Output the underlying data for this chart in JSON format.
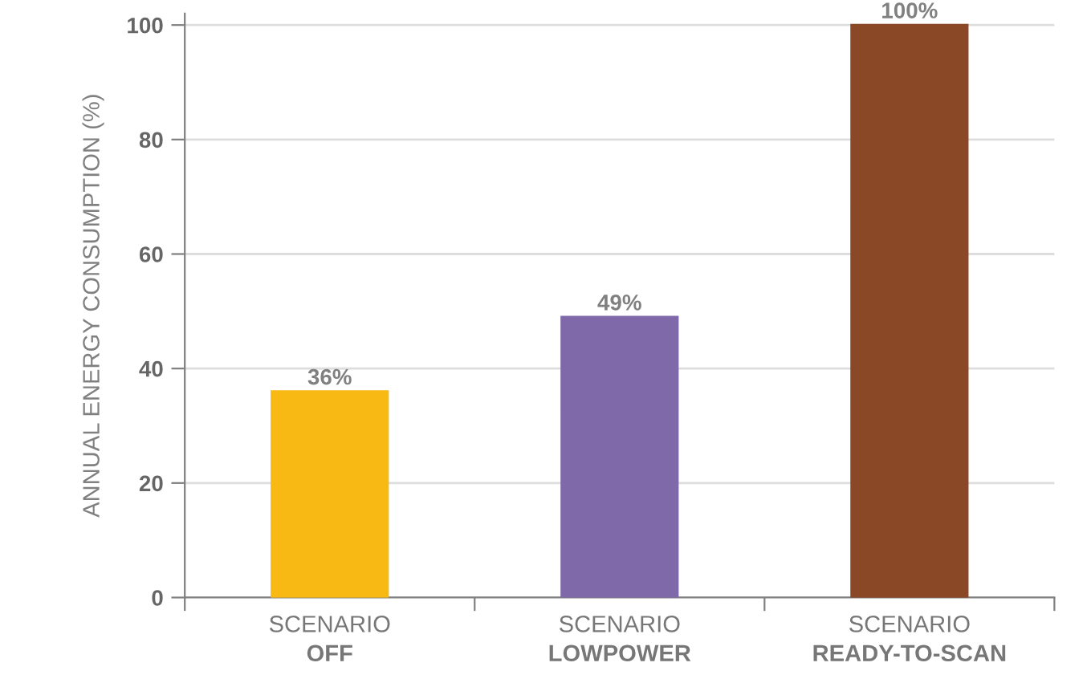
{
  "chart_data": {
    "type": "bar",
    "ylabel": "ANNUAL ENERGY CONSUMPTION (%)",
    "categories": [
      "SCENARIO\nOFF",
      "SCENARIO\nLOWPOWER",
      "SCENARIO\nREADY-TO-SCAN"
    ],
    "values": [
      36,
      49,
      100
    ],
    "colors": [
      "#f9b914",
      "#7f69a9",
      "#8b4827"
    ],
    "value_labels": [
      "36%",
      "49%",
      "100%"
    ],
    "ylim": [
      0,
      102
    ],
    "yticks": [
      0,
      20,
      40,
      60,
      80,
      100
    ],
    "grid": "y"
  }
}
